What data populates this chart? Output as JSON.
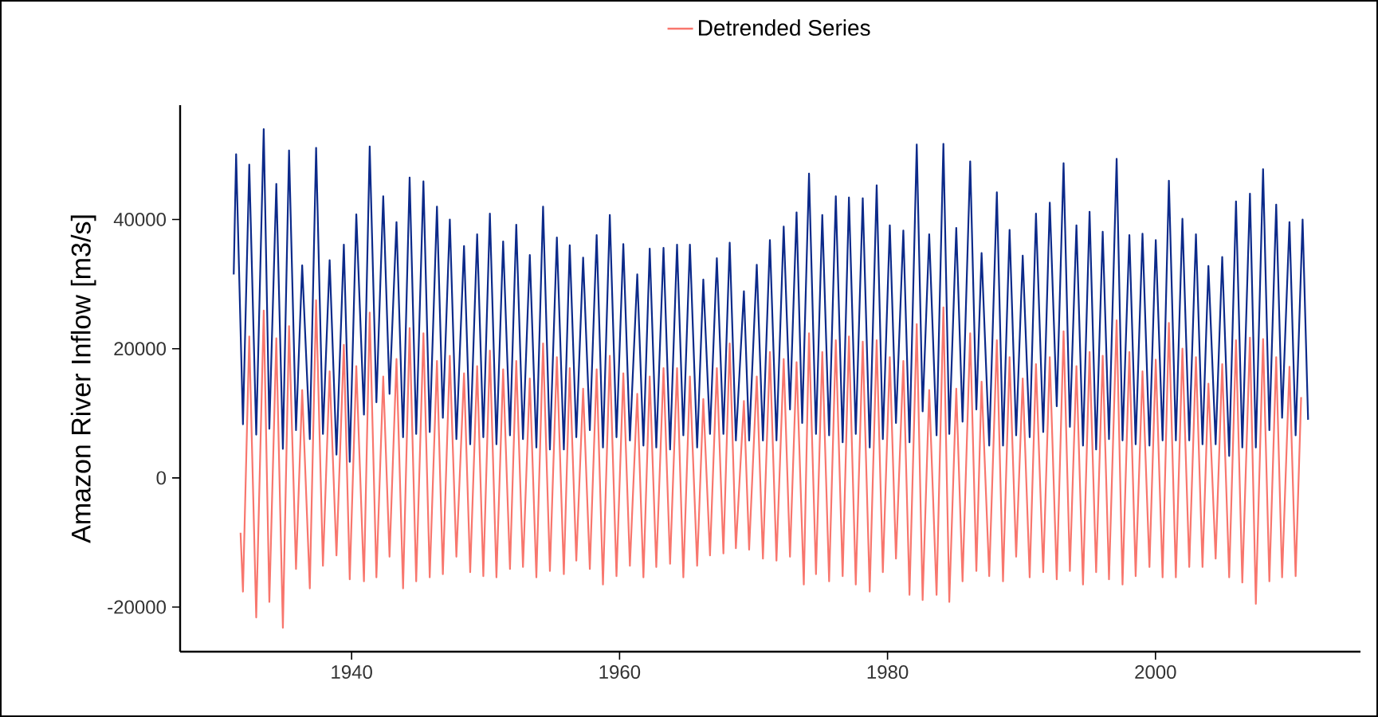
{
  "chart_data": {
    "type": "line",
    "ylabel": "Amazon River Inflow [m3/s]",
    "xlim": [
      1927.2,
      2015.3
    ],
    "ylim": [
      -26900,
      57700
    ],
    "xticks": [
      1940,
      1960,
      1980,
      2000
    ],
    "yticks": [
      -20000,
      0,
      20000,
      40000
    ],
    "legend": "top",
    "series": [
      {
        "color": "#0c2a8a",
        "x": [
          1931.2,
          1931.38,
          1931.89,
          1932.36,
          1932.88,
          1933.44,
          1933.86,
          1934.38,
          1934.87,
          1935.33,
          1935.85,
          1936.31,
          1936.88,
          1937.35,
          1937.86,
          1938.36,
          1938.87,
          1939.42,
          1939.86,
          1940.35,
          1940.92,
          1941.35,
          1941.85,
          1942.36,
          1942.83,
          1943.35,
          1943.84,
          1944.33,
          1944.82,
          1945.36,
          1945.83,
          1946.37,
          1946.81,
          1947.33,
          1947.82,
          1948.39,
          1948.85,
          1949.37,
          1949.83,
          1950.32,
          1950.81,
          1951.31,
          1951.82,
          1952.29,
          1952.79,
          1953.3,
          1953.79,
          1954.29,
          1954.8,
          1955.32,
          1955.84,
          1956.28,
          1956.77,
          1957.28,
          1957.78,
          1958.29,
          1958.76,
          1959.27,
          1959.77,
          1960.28,
          1960.77,
          1961.32,
          1961.78,
          1962.25,
          1962.74,
          1963.28,
          1963.77,
          1964.29,
          1964.76,
          1965.25,
          1965.79,
          1966.25,
          1966.75,
          1967.26,
          1967.75,
          1968.22,
          1968.68,
          1969.28,
          1969.67,
          1970.24,
          1970.7,
          1971.22,
          1971.71,
          1972.25,
          1972.72,
          1973.21,
          1973.63,
          1974.14,
          1974.66,
          1975.13,
          1975.64,
          1976.14,
          1976.65,
          1977.12,
          1977.63,
          1978.15,
          1978.67,
          1979.19,
          1979.65,
          1980.17,
          1980.63,
          1981.18,
          1981.64,
          1982.18,
          1982.62,
          1983.11,
          1983.66,
          1984.17,
          1984.61,
          1985.13,
          1985.6,
          1986.17,
          1986.63,
          1987.02,
          1987.59,
          1988.16,
          1988.62,
          1989.11,
          1989.6,
          1990.09,
          1990.61,
          1991.08,
          1991.62,
          1992.11,
          1992.63,
          1993.14,
          1993.61,
          1994.1,
          1994.59,
          1995.08,
          1995.57,
          1996.06,
          1996.53,
          1997.1,
          1997.54,
          1998.05,
          1998.52,
          1999.03,
          1999.55,
          2000.02,
          2000.53,
          2001.0,
          2001.52,
          2002.01,
          2002.52,
          2003.02,
          2003.51,
          2003.95,
          2004.49,
          2004.98,
          2005.5,
          2006.01,
          2006.48,
          2007.05,
          2007.49,
          2008.03,
          2008.5,
          2009.01,
          2009.45,
          2010.0,
          2010.46,
          2010.98,
          2011.39
        ],
        "values": [
          31500,
          50100,
          8300,
          48500,
          6700,
          54000,
          7600,
          45500,
          4500,
          50700,
          7400,
          32900,
          6000,
          51100,
          6800,
          33700,
          3600,
          36100,
          2500,
          40800,
          9800,
          51300,
          11700,
          43600,
          13000,
          39600,
          6300,
          46500,
          6800,
          45900,
          7100,
          42000,
          9300,
          40000,
          6000,
          35900,
          5200,
          37700,
          6300,
          40900,
          5200,
          36600,
          6600,
          39200,
          6000,
          34500,
          4700,
          42000,
          4400,
          37200,
          4400,
          36000,
          6300,
          34100,
          7400,
          37600,
          4700,
          40700,
          6300,
          36200,
          5800,
          31500,
          5000,
          35500,
          4700,
          35600,
          4400,
          36100,
          6600,
          36100,
          4700,
          30700,
          6800,
          34000,
          6800,
          36400,
          5800,
          28900,
          5800,
          33000,
          5800,
          36800,
          5800,
          38900,
          10600,
          41100,
          8500,
          47100,
          6800,
          40700,
          6600,
          43600,
          5500,
          43400,
          6800,
          43300,
          4700,
          45300,
          6000,
          39100,
          8500,
          38300,
          5500,
          51600,
          10300,
          37700,
          6600,
          51700,
          6800,
          38700,
          8700,
          49000,
          10600,
          34800,
          5000,
          44200,
          5000,
          38400,
          6600,
          34400,
          6300,
          40900,
          7100,
          42600,
          11100,
          48700,
          7900,
          39100,
          5000,
          41200,
          4400,
          38100,
          6000,
          49400,
          5800,
          37600,
          5200,
          37800,
          5000,
          36800,
          5800,
          46000,
          5800,
          40100,
          5800,
          37700,
          5200,
          32800,
          5200,
          34200,
          3400,
          42800,
          4700,
          44000,
          4700,
          47800,
          7400,
          42300,
          9300,
          39600,
          6600,
          40000,
          9000
        ]
      },
      {
        "name": "Detrended Series",
        "color": "#f8766d",
        "x": [
          1931.71,
          1931.89,
          1932.36,
          1932.88,
          1933.44,
          1933.86,
          1934.38,
          1934.87,
          1935.33,
          1935.85,
          1936.31,
          1936.88,
          1937.35,
          1937.86,
          1938.36,
          1938.87,
          1939.42,
          1939.86,
          1940.35,
          1940.92,
          1941.35,
          1941.85,
          1942.36,
          1942.83,
          1943.35,
          1943.84,
          1944.33,
          1944.82,
          1945.36,
          1945.83,
          1946.37,
          1946.81,
          1947.33,
          1947.82,
          1948.39,
          1948.85,
          1949.37,
          1949.83,
          1950.32,
          1950.81,
          1951.31,
          1951.82,
          1952.29,
          1952.79,
          1953.3,
          1953.79,
          1954.29,
          1954.8,
          1955.32,
          1955.84,
          1956.28,
          1956.77,
          1957.28,
          1957.78,
          1958.29,
          1958.76,
          1959.27,
          1959.77,
          1960.28,
          1960.77,
          1961.32,
          1961.78,
          1962.25,
          1962.74,
          1963.28,
          1963.77,
          1964.29,
          1964.76,
          1965.25,
          1965.79,
          1966.25,
          1966.75,
          1967.26,
          1967.75,
          1968.22,
          1968.68,
          1969.28,
          1969.67,
          1970.24,
          1970.7,
          1971.22,
          1971.71,
          1972.25,
          1972.72,
          1973.21,
          1973.75,
          1974.14,
          1974.66,
          1975.13,
          1975.64,
          1976.14,
          1976.65,
          1977.12,
          1977.63,
          1978.15,
          1978.67,
          1979.19,
          1979.65,
          1980.17,
          1980.63,
          1981.18,
          1981.64,
          1982.18,
          1982.62,
          1983.11,
          1983.66,
          1984.17,
          1984.61,
          1985.13,
          1985.6,
          1986.17,
          1986.63,
          1987.02,
          1987.59,
          1988.16,
          1988.62,
          1989.11,
          1989.6,
          1990.09,
          1990.61,
          1991.08,
          1991.62,
          1992.11,
          1992.63,
          1993.14,
          1993.61,
          1994.1,
          1994.59,
          1995.08,
          1995.57,
          1996.06,
          1996.53,
          1997.1,
          1997.54,
          1998.05,
          1998.52,
          1999.03,
          1999.55,
          2000.02,
          2000.53,
          2001.0,
          2001.52,
          2002.01,
          2002.52,
          2003.02,
          2003.51,
          2003.95,
          2004.49,
          2004.98,
          2005.5,
          2006.01,
          2006.48,
          2007.05,
          2007.49,
          2008.03,
          2008.5,
          2009.01,
          2009.45,
          2010.0,
          2010.46,
          2010.87
        ],
        "values": [
          -8500,
          -17600,
          21900,
          -21600,
          25900,
          -19200,
          21600,
          -23200,
          23500,
          -14100,
          13600,
          -17100,
          27500,
          -13600,
          16500,
          -12000,
          20600,
          -15700,
          17300,
          -16000,
          25600,
          -15400,
          15700,
          -12200,
          18400,
          -17100,
          23200,
          -16000,
          22400,
          -15400,
          18100,
          -14900,
          18900,
          -12200,
          16200,
          -14600,
          17300,
          -15200,
          19700,
          -15400,
          16800,
          -14100,
          18100,
          -13800,
          15400,
          -15400,
          20800,
          -14400,
          18700,
          -14900,
          17000,
          -12800,
          13800,
          -14100,
          16800,
          -16500,
          18900,
          -15200,
          16200,
          -13600,
          13000,
          -15400,
          15700,
          -13800,
          17000,
          -13300,
          17000,
          -15400,
          15700,
          -13600,
          12200,
          -12000,
          17000,
          -11700,
          20800,
          -10900,
          11900,
          -11100,
          15700,
          -12500,
          19500,
          -12800,
          18400,
          -12200,
          17900,
          -16500,
          22400,
          -14900,
          19500,
          -16000,
          21300,
          -15200,
          21900,
          -16500,
          21100,
          -17600,
          21300,
          -14600,
          18700,
          -12500,
          18100,
          -18100,
          23800,
          -18900,
          13600,
          -18100,
          26400,
          -19200,
          13800,
          -16000,
          22400,
          -14400,
          14900,
          -15200,
          21300,
          -16000,
          18700,
          -12200,
          15400,
          -15400,
          17600,
          -14600,
          18700,
          -15700,
          22700,
          -14400,
          17300,
          -16500,
          19500,
          -14600,
          18900,
          -15700,
          24400,
          -16500,
          19500,
          -15200,
          16500,
          -13800,
          18300,
          -15400,
          24000,
          -15400,
          20000,
          -13800,
          18700,
          -13800,
          14600,
          -12500,
          17600,
          -15400,
          21300,
          -16200,
          21700,
          -19500,
          21500,
          -16000,
          18700,
          -15400,
          17200,
          -15200,
          12500
        ]
      }
    ]
  }
}
